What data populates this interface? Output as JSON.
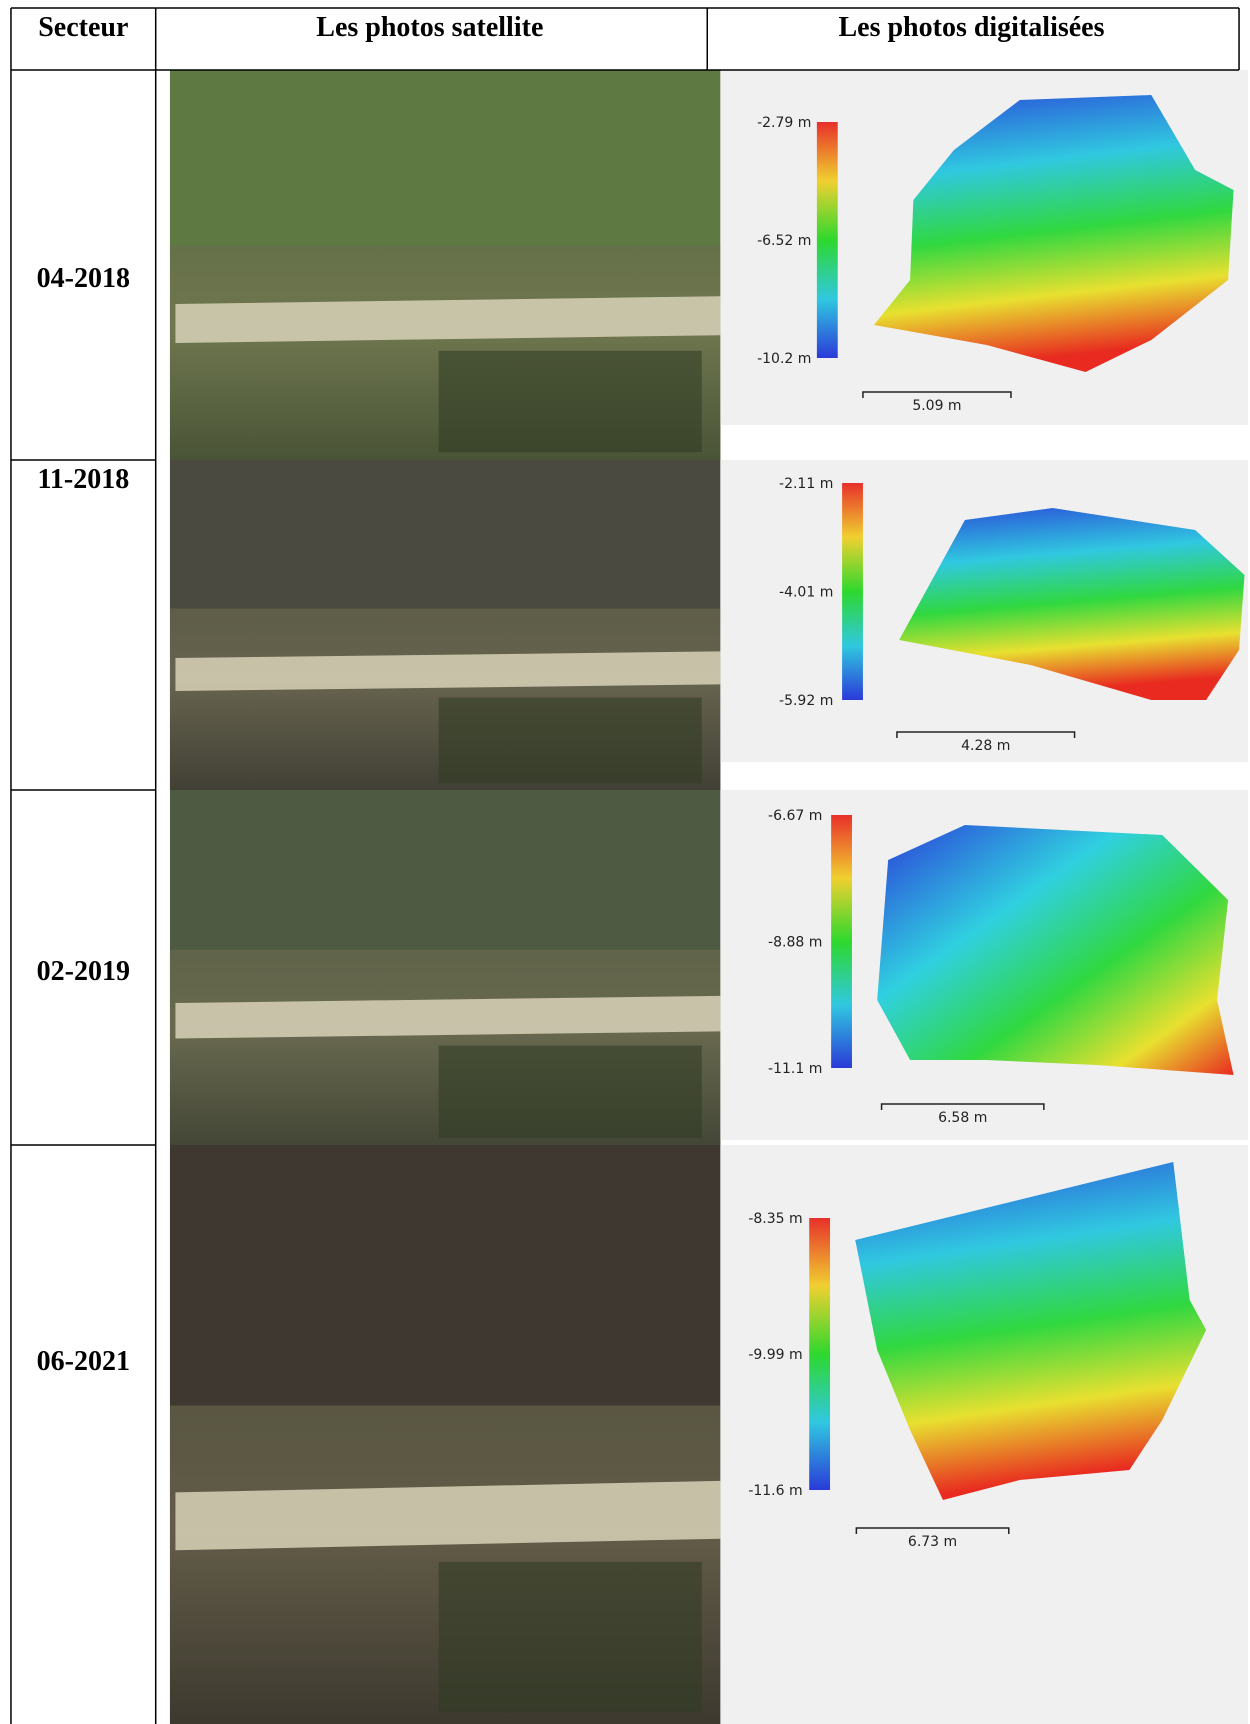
{
  "table": {
    "header": [
      "Secteur",
      "Les photos satellite",
      "Les photos digitalisées"
    ],
    "rows": [
      {
        "sector": "04-2018",
        "legend": [
          "-2.79 m",
          "-6.52 m",
          "-10.2 m"
        ],
        "scale": "5.09 m"
      },
      {
        "sector": "11-2018",
        "legend": [
          "-2.11 m",
          "-4.01 m",
          "-5.92 m"
        ],
        "scale": "4.28 m"
      },
      {
        "sector": "02-2019",
        "legend": [
          "-6.67 m",
          "-8.88 m",
          "-11.1 m"
        ],
        "scale": "6.58 m"
      },
      {
        "sector": "06-2021",
        "legend": [
          "-8.35 m",
          "-9.99 m",
          "-11.6 m"
        ],
        "scale": "6.73 m"
      }
    ]
  }
}
